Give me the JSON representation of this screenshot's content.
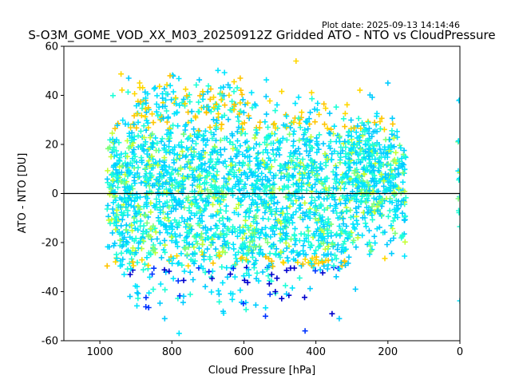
{
  "plot_date": "Plot date: 2025-09-13 14:14:46",
  "chart_data": {
    "type": "scatter",
    "title": "S-O3M_GOME_VOD_XX_M03_20250912Z Gridded ATO - NTO vs CloudPressure",
    "xlabel": "Cloud Pressure [hPa]",
    "ylabel": "ATO - NTO [DU]",
    "xlim": [
      1100,
      0
    ],
    "ylim": [
      -60,
      60
    ],
    "x_inverted": true,
    "xticks": [
      1000,
      800,
      600,
      400,
      200,
      0
    ],
    "yticks": [
      -60,
      -40,
      -20,
      0,
      20,
      40,
      60
    ],
    "marker": "+",
    "reference_line_y": 0,
    "grid": false,
    "series_colors": [
      "#00e5ff",
      "#00ccff",
      "#1effd8",
      "#7cff79",
      "#c4ff36",
      "#ffd700",
      "#ffc400",
      "#0000cd",
      "#0033ff"
    ],
    "clusters": [
      {
        "x_range": [
          980,
          150
        ],
        "y_center": 0,
        "y_spread": 12,
        "count": 1400
      },
      {
        "x_range": [
          970,
          250
        ],
        "y_center": 20,
        "y_spread": 10,
        "count": 500
      },
      {
        "x_range": [
          960,
          300
        ],
        "y_center": -22,
        "y_spread": 6,
        "count": 420
      },
      {
        "x_range": [
          900,
          600
        ],
        "y_center": 38,
        "y_spread": 5,
        "count": 120
      },
      {
        "x_range": [
          950,
          400
        ],
        "y_center": -38,
        "y_spread": 5,
        "count": 70
      },
      {
        "x_range": [
          320,
          180
        ],
        "y_center": 12,
        "y_spread": 10,
        "count": 160
      },
      {
        "x_range": [
          5,
          0
        ],
        "y_center": 5,
        "y_spread": 18,
        "count": 14
      }
    ],
    "outliers": [
      {
        "x": 455,
        "y": 54
      },
      {
        "x": 805,
        "y": 48
      },
      {
        "x": 780,
        "y": -57
      },
      {
        "x": 430,
        "y": -56
      },
      {
        "x": 355,
        "y": -49
      },
      {
        "x": 335,
        "y": -51
      },
      {
        "x": 820,
        "y": -51
      },
      {
        "x": 200,
        "y": 45
      },
      {
        "x": 290,
        "y": -39
      },
      {
        "x": 540,
        "y": -50
      },
      {
        "x": 610,
        "y": 47
      },
      {
        "x": 920,
        "y": 47
      }
    ]
  }
}
